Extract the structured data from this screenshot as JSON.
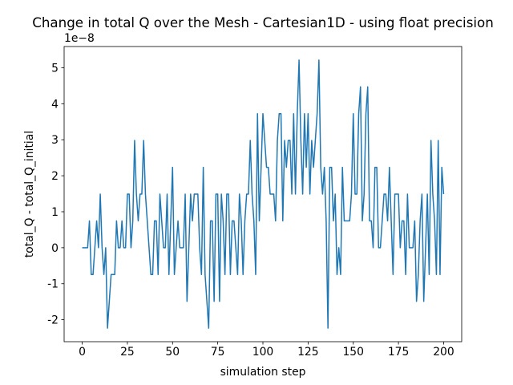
{
  "chart_data": {
    "type": "line",
    "title": "Change in total Q over the Mesh - Cartesian1D - using float precision",
    "x_label": "simulation step",
    "y_label": "total_Q - total_Q_initial",
    "y_offset_label": "1e−8",
    "color": "#1f77b4",
    "x": [
      0,
      1,
      2,
      3,
      4,
      5,
      6,
      7,
      8,
      9,
      10,
      11,
      12,
      13,
      14,
      15,
      16,
      17,
      18,
      19,
      20,
      21,
      22,
      23,
      24,
      25,
      26,
      27,
      28,
      29,
      30,
      31,
      32,
      33,
      34,
      35,
      36,
      37,
      38,
      39,
      40,
      41,
      42,
      43,
      44,
      45,
      46,
      47,
      48,
      49,
      50,
      51,
      52,
      53,
      54,
      55,
      56,
      57,
      58,
      59,
      60,
      61,
      62,
      63,
      64,
      65,
      66,
      67,
      68,
      69,
      70,
      71,
      72,
      73,
      74,
      75,
      76,
      77,
      78,
      79,
      80,
      81,
      82,
      83,
      84,
      85,
      86,
      87,
      88,
      89,
      90,
      91,
      92,
      93,
      94,
      95,
      96,
      97,
      98,
      99,
      100,
      101,
      102,
      103,
      104,
      105,
      106,
      107,
      108,
      109,
      110,
      111,
      112,
      113,
      114,
      115,
      116,
      117,
      118,
      119,
      120,
      121,
      122,
      123,
      124,
      125,
      126,
      127,
      128,
      129,
      130,
      131,
      132,
      133,
      134,
      135,
      136,
      137,
      138,
      139,
      140,
      141,
      142,
      143,
      144,
      145,
      146,
      147,
      148,
      149,
      150,
      151,
      152,
      153,
      154,
      155,
      156,
      157,
      158,
      159,
      160,
      161,
      162,
      163,
      164,
      165,
      166,
      167,
      168,
      169,
      170,
      171,
      172,
      173,
      174,
      175,
      176,
      177,
      178,
      179,
      180,
      181,
      182,
      183,
      184,
      185,
      186,
      187,
      188,
      189,
      190,
      191,
      192,
      193,
      194,
      195,
      196,
      197,
      198,
      199,
      200
    ],
    "values": [
      0,
      0,
      0,
      0,
      0.745,
      -0.745,
      -0.745,
      0,
      0.745,
      0,
      1.49,
      0,
      -0.745,
      0,
      -2.235,
      -1.49,
      -0.745,
      -0.745,
      -0.745,
      0.745,
      0,
      0,
      0.745,
      0,
      0,
      1.49,
      1.49,
      0,
      0.745,
      2.98,
      1.49,
      0.745,
      1.49,
      1.49,
      2.98,
      1.49,
      0.745,
      0,
      -0.745,
      -0.745,
      0.745,
      0.745,
      -0.745,
      1.49,
      0.745,
      0,
      0,
      1.49,
      -0.745,
      0.745,
      2.235,
      -0.745,
      0,
      0.745,
      0,
      0,
      0,
      1.49,
      -1.49,
      0,
      1.49,
      0.745,
      1.49,
      1.49,
      1.49,
      0,
      -0.745,
      2.235,
      -0.745,
      -1.49,
      -2.235,
      0.745,
      0.745,
      -1.49,
      1.49,
      1.49,
      -1.49,
      1.49,
      0.745,
      -0.745,
      1.49,
      1.49,
      -0.745,
      0.745,
      0.745,
      0,
      -0.745,
      1.49,
      0.745,
      -0.745,
      0.745,
      1.49,
      1.49,
      2.98,
      1.49,
      0.745,
      -0.745,
      3.725,
      0.745,
      2.235,
      3.725,
      2.98,
      2.235,
      2.235,
      1.49,
      1.49,
      1.49,
      0.745,
      2.98,
      3.725,
      3.725,
      0.745,
      2.98,
      2.235,
      2.98,
      2.98,
      1.49,
      3.725,
      1.49,
      3.725,
      5.215,
      2.98,
      1.49,
      3.725,
      2.235,
      3.725,
      1.49,
      2.98,
      2.235,
      2.98,
      3.725,
      5.215,
      2.235,
      1.49,
      2.235,
      0.745,
      -2.235,
      2.235,
      2.235,
      0.745,
      1.49,
      -0.745,
      0,
      -0.745,
      2.235,
      0.745,
      0.745,
      0.745,
      0.745,
      1.49,
      3.725,
      1.49,
      1.49,
      3.725,
      4.47,
      0.745,
      1.49,
      3.725,
      4.47,
      0.745,
      0.745,
      0,
      2.235,
      2.235,
      0,
      0,
      0.745,
      1.49,
      1.49,
      0.745,
      2.235,
      0.745,
      -0.745,
      1.49,
      1.49,
      1.49,
      0,
      0.745,
      0.745,
      -0.745,
      1.49,
      0,
      0,
      0,
      0.745,
      -1.49,
      -0.745,
      0.745,
      1.49,
      -1.49,
      0,
      1.49,
      -0.745,
      2.98,
      1.49,
      0.745,
      -0.745,
      2.98,
      -0.745,
      2.235,
      1.49
    ],
    "xlim": [
      -10,
      210
    ],
    "xticks": [
      0,
      25,
      50,
      75,
      100,
      125,
      150,
      175,
      200
    ],
    "ylim": [
      -2.61,
      5.59
    ],
    "yticks": [
      -2,
      -1,
      0,
      1,
      2,
      3,
      4,
      5
    ]
  }
}
